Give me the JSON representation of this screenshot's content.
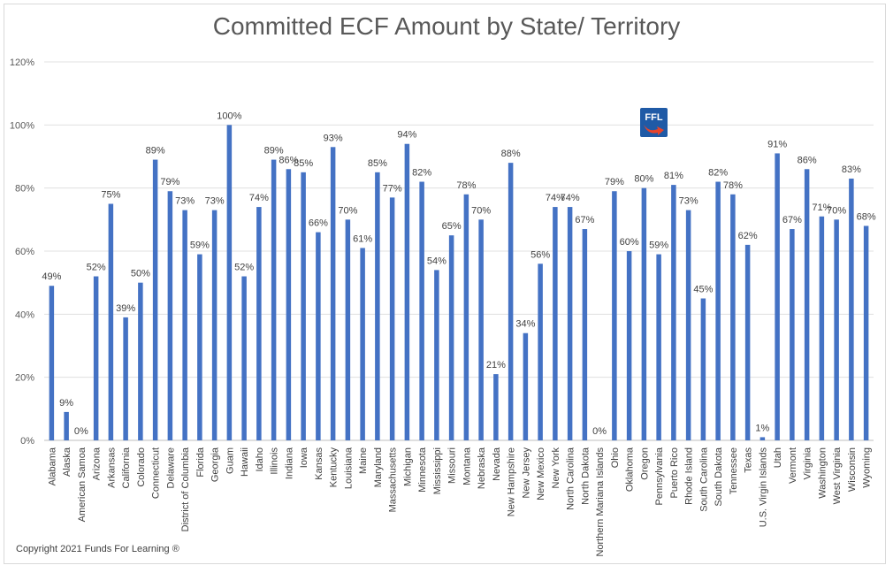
{
  "chart_data": {
    "type": "bar",
    "title": "Committed ECF Amount by State/ Territory",
    "xlabel": "",
    "ylabel": "",
    "ylim": [
      0,
      120
    ],
    "yticks": [
      "0%",
      "20%",
      "40%",
      "60%",
      "80%",
      "100%",
      "120%"
    ],
    "grid": true,
    "legend": "none",
    "bar_color": "#4472c4",
    "categories": [
      "Alabama",
      "Alaska",
      "American Samoa",
      "Arizona",
      "Arkansas",
      "California",
      "Colorado",
      "Connecticut",
      "Delaware",
      "District of Columbia",
      "Florida",
      "Georgia",
      "Guam",
      "Hawaii",
      "Idaho",
      "Illinois",
      "Indiana",
      "Iowa",
      "Kansas",
      "Kentucky",
      "Louisiana",
      "Maine",
      "Maryland",
      "Massachusetts",
      "Michigan",
      "Minnesota",
      "Mississippi",
      "Missouri",
      "Montana",
      "Nebraska",
      "Nevada",
      "New Hampshire",
      "New Jersey",
      "New Mexico",
      "New York",
      "North Carolina",
      "North Dakota",
      "Northern Mariana Islands",
      "Ohio",
      "Oklahoma",
      "Oregon",
      "Pennsylvania",
      "Puerto Rico",
      "Rhode Island",
      "South Carolina",
      "South Dakota",
      "Tennessee",
      "Texas",
      "U.S. Virgin Islands",
      "Utah",
      "Vermont",
      "Virginia",
      "Washington",
      "West Virginia",
      "Wisconsin",
      "Wyoming"
    ],
    "values": [
      49,
      9,
      0,
      52,
      75,
      39,
      50,
      89,
      79,
      73,
      59,
      73,
      100,
      52,
      74,
      89,
      86,
      85,
      66,
      93,
      70,
      61,
      85,
      77,
      94,
      82,
      54,
      65,
      78,
      70,
      21,
      88,
      34,
      56,
      74,
      74,
      67,
      0,
      79,
      60,
      80,
      59,
      81,
      73,
      45,
      82,
      78,
      62,
      1,
      91,
      67,
      86,
      71,
      70,
      83,
      68
    ],
    "value_labels": [
      "49%",
      "9%",
      "0%",
      "52%",
      "75%",
      "39%",
      "50%",
      "89%",
      "79%",
      "73%",
      "59%",
      "73%",
      "100%",
      "52%",
      "74%",
      "89%",
      "86%",
      "85%",
      "66%",
      "93%",
      "70%",
      "61%",
      "85%",
      "77%",
      "94%",
      "82%",
      "54%",
      "65%",
      "78%",
      "70%",
      "21%",
      "88%",
      "34%",
      "56%",
      "74%",
      "74%",
      "67%",
      "0%",
      "79%",
      "60%",
      "80%",
      "59%",
      "81%",
      "73%",
      "45%",
      "82%",
      "78%",
      "62%",
      "1%",
      "91%",
      "67%",
      "86%",
      "71%",
      "70%",
      "83%",
      "68%"
    ]
  },
  "footer": {
    "copyright": "Copyright 2021 Funds For Learning ®"
  },
  "logo": {
    "text": "FFL",
    "bg_color": "#1f5aa6",
    "arrow_color": "#e8432a"
  }
}
